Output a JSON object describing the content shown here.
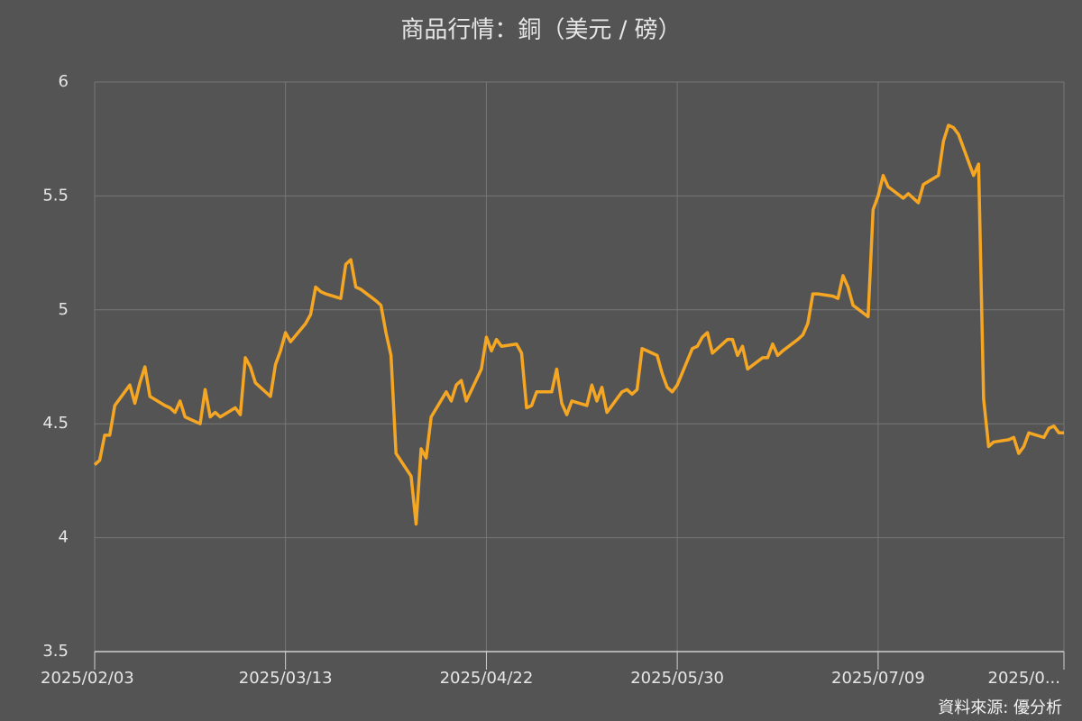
{
  "chart_data": {
    "type": "line",
    "title": "商品行情：銅（美元 / 磅）",
    "source": "資料來源: 優分析",
    "color": "#f5a623",
    "grid": true,
    "xlim": [
      "2025/02/03",
      "2025/08/15"
    ],
    "xticks": [
      "2025/02/03",
      "2025/03/13",
      "2025/04/22",
      "2025/05/30",
      "2025/07/09",
      {
        "value": "2025/08/15",
        "label": "2025/0..."
      }
    ],
    "ylim": [
      3.5,
      6
    ],
    "yticks": [
      3.5,
      4,
      4.5,
      5,
      5.5,
      6
    ],
    "x": [
      "2025/02/03",
      "2025/02/04",
      "2025/02/05",
      "2025/02/06",
      "2025/02/07",
      "2025/02/10",
      "2025/02/11",
      "2025/02/12",
      "2025/02/13",
      "2025/02/14",
      "2025/02/17",
      "2025/02/18",
      "2025/02/19",
      "2025/02/20",
      "2025/02/21",
      "2025/02/24",
      "2025/02/25",
      "2025/02/26",
      "2025/02/27",
      "2025/02/28",
      "2025/03/03",
      "2025/03/04",
      "2025/03/05",
      "2025/03/06",
      "2025/03/07",
      "2025/03/10",
      "2025/03/11",
      "2025/03/12",
      "2025/03/13",
      "2025/03/14",
      "2025/03/17",
      "2025/03/18",
      "2025/03/19",
      "2025/03/20",
      "2025/03/21",
      "2025/03/24",
      "2025/03/25",
      "2025/03/26",
      "2025/03/27",
      "2025/03/28",
      "2025/03/31",
      "2025/04/01",
      "2025/04/02",
      "2025/04/03",
      "2025/04/04",
      "2025/04/07",
      "2025/04/08",
      "2025/04/09",
      "2025/04/10",
      "2025/04/11",
      "2025/04/14",
      "2025/04/15",
      "2025/04/16",
      "2025/04/17",
      "2025/04/18",
      "2025/04/21",
      "2025/04/22",
      "2025/04/23",
      "2025/04/24",
      "2025/04/25",
      "2025/04/28",
      "2025/04/29",
      "2025/04/30",
      "2025/05/01",
      "2025/05/02",
      "2025/05/05",
      "2025/05/06",
      "2025/05/07",
      "2025/05/08",
      "2025/05/09",
      "2025/05/12",
      "2025/05/13",
      "2025/05/14",
      "2025/05/15",
      "2025/05/16",
      "2025/05/19",
      "2025/05/20",
      "2025/05/21",
      "2025/05/22",
      "2025/05/23",
      "2025/05/26",
      "2025/05/27",
      "2025/05/28",
      "2025/05/29",
      "2025/05/30",
      "2025/06/02",
      "2025/06/03",
      "2025/06/04",
      "2025/06/05",
      "2025/06/06",
      "2025/06/09",
      "2025/06/10",
      "2025/06/11",
      "2025/06/12",
      "2025/06/13",
      "2025/06/16",
      "2025/06/17",
      "2025/06/18",
      "2025/06/19",
      "2025/06/20",
      "2025/06/23",
      "2025/06/24",
      "2025/06/25",
      "2025/06/26",
      "2025/06/27",
      "2025/06/30",
      "2025/07/01",
      "2025/07/02",
      "2025/07/03",
      "2025/07/04",
      "2025/07/07",
      "2025/07/08",
      "2025/07/09",
      "2025/07/10",
      "2025/07/11",
      "2025/07/14",
      "2025/07/15",
      "2025/07/16",
      "2025/07/17",
      "2025/07/18",
      "2025/07/21",
      "2025/07/22",
      "2025/07/23",
      "2025/07/24",
      "2025/07/25",
      "2025/07/28",
      "2025/07/29",
      "2025/07/30",
      "2025/07/31",
      "2025/08/01",
      "2025/08/04",
      "2025/08/05",
      "2025/08/06",
      "2025/08/07",
      "2025/08/08",
      "2025/08/11",
      "2025/08/12",
      "2025/08/13",
      "2025/08/14",
      "2025/08/15"
    ],
    "values": [
      4.32,
      4.34,
      4.45,
      4.45,
      4.58,
      4.67,
      4.59,
      4.68,
      4.75,
      4.62,
      4.58,
      4.57,
      4.55,
      4.6,
      4.53,
      4.5,
      4.65,
      4.53,
      4.55,
      4.53,
      4.57,
      4.54,
      4.79,
      4.75,
      4.68,
      4.62,
      4.76,
      4.82,
      4.9,
      4.86,
      4.94,
      4.98,
      5.1,
      5.08,
      5.07,
      5.05,
      5.2,
      5.22,
      5.1,
      5.09,
      5.04,
      5.02,
      4.9,
      4.8,
      4.37,
      4.27,
      4.06,
      4.39,
      4.35,
      4.53,
      4.64,
      4.6,
      4.67,
      4.69,
      4.6,
      4.74,
      4.88,
      4.82,
      4.87,
      4.84,
      4.85,
      4.81,
      4.57,
      4.58,
      4.64,
      4.64,
      4.74,
      4.59,
      4.54,
      4.6,
      4.58,
      4.67,
      4.6,
      4.66,
      4.55,
      4.64,
      4.65,
      4.63,
      4.65,
      4.83,
      4.8,
      4.72,
      4.66,
      4.64,
      4.67,
      4.83,
      4.84,
      4.88,
      4.9,
      4.81,
      4.87,
      4.87,
      4.8,
      4.84,
      4.74,
      4.79,
      4.79,
      4.85,
      4.8,
      4.82,
      4.87,
      4.89,
      4.94,
      5.07,
      5.07,
      5.06,
      5.05,
      5.15,
      5.1,
      5.02,
      4.97,
      5.44,
      5.5,
      5.59,
      5.54,
      5.49,
      5.51,
      5.49,
      5.47,
      5.55,
      5.59,
      5.74,
      5.81,
      5.8,
      5.77,
      5.59,
      5.64,
      4.61,
      4.4,
      4.42,
      4.43,
      4.44,
      4.37,
      4.4,
      4.46,
      4.44,
      4.48,
      4.49,
      4.46,
      4.46
    ]
  }
}
